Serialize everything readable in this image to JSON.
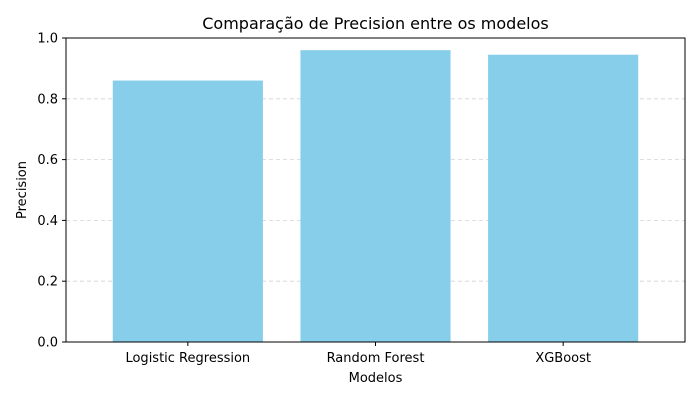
{
  "chart_data": {
    "type": "bar",
    "title": "Comparação de Precision entre os modelos",
    "xlabel": "Modelos",
    "ylabel": "Precision",
    "categories": [
      "Logistic Regression",
      "Random Forest",
      "XGBoost"
    ],
    "values": [
      0.86,
      0.96,
      0.945
    ],
    "ylim": [
      0,
      1.0
    ],
    "yticks": [
      "0.0",
      "0.2",
      "0.4",
      "0.6",
      "0.8",
      "1.0"
    ],
    "grid": "y-dashed",
    "bar_color": "#87CEEB",
    "grid_color": "#d3d3d3"
  }
}
